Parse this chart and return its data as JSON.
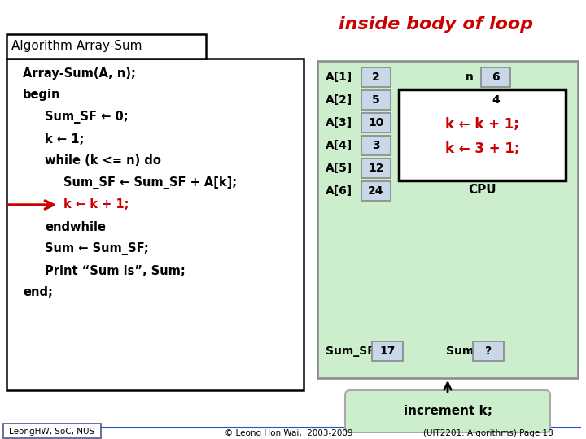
{
  "title": "inside body of loop",
  "title_color": "#cc0000",
  "algo_title": "Algorithm Array-Sum",
  "bg_color": "#ffffff",
  "right_box_color": "#cceecc",
  "right_box_color2": "#d4edcc",
  "array_values": [
    2,
    5,
    10,
    3,
    12,
    24
  ],
  "n_value": "6",
  "k_value": "4",
  "sum_sf_value": "17",
  "sum_value": "?",
  "footer_left": "LeongHW, SoC, NUS",
  "footer_center": "© Leong Hon Wai,  2003-2009",
  "footer_right": "(UIT2201: Algorithms) Page 18",
  "increment_label": "increment k;",
  "cpu_label": "CPU",
  "inner_box_line1": "k ← k + 1;",
  "inner_box_line2": "k ← 3 + 1;",
  "cell_facecolor": "#c8d8e8",
  "cell_edgecolor": "#888888",
  "k_cell_color": "#ffff00",
  "arrow_color": "#cc0000",
  "code_lines": [
    "Array-Sum(A, n);",
    "begin",
    "    Sum_SF ← 0;",
    "    k ← 1;",
    "    while (k <= n) do",
    "        Sum_SF ← Sum_SF + A[k];",
    "        k ← k + 1;",
    "    endwhile",
    "    Sum ← Sum_SF;",
    "    Print “Sum is”, Sum;",
    "end;"
  ],
  "code_colors": [
    "black",
    "black",
    "black",
    "black",
    "black",
    "black",
    "#cc0000",
    "black",
    "black",
    "black",
    "black"
  ],
  "arrow_line_idx": 6
}
